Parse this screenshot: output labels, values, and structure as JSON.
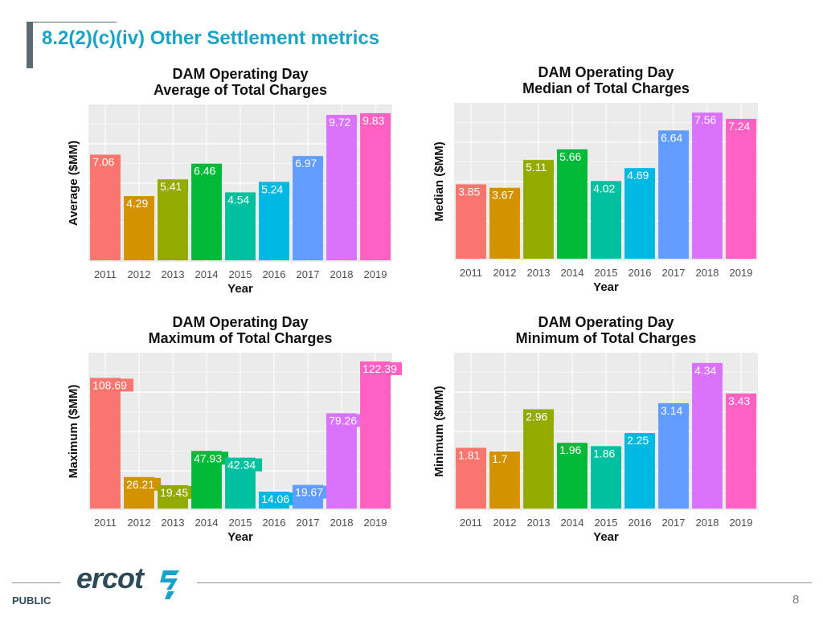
{
  "slide": {
    "title": "8.2(2)(c)(iv) Other Settlement metrics"
  },
  "footer": {
    "classification": "PUBLIC",
    "page_number": "8",
    "logo_text": "ercot"
  },
  "palette": [
    "#F8766D",
    "#D39200",
    "#93AA00",
    "#00BA38",
    "#00C19F",
    "#00B9E3",
    "#619CFF",
    "#DB72FB",
    "#FF61C3"
  ],
  "chart_data": [
    {
      "type": "bar",
      "title": [
        "DAM Operating Day",
        "Average of Total Charges"
      ],
      "xlabel": "Year",
      "ylabel": "Average ($MM)",
      "categories": [
        "2011",
        "2012",
        "2013",
        "2014",
        "2015",
        "2016",
        "2017",
        "2018",
        "2019"
      ],
      "values": [
        7.06,
        4.29,
        5.41,
        6.46,
        4.54,
        5.24,
        6.97,
        9.72,
        9.83
      ],
      "labels": [
        "7.06",
        "4.29",
        "5.41",
        "6.46",
        "4.54",
        "5.24",
        "6.97",
        "9.72",
        "9.83"
      ],
      "ylim": [
        0,
        10.2
      ],
      "grid": true
    },
    {
      "type": "bar",
      "title": [
        "DAM Operating Day",
        "Median of Total Charges"
      ],
      "xlabel": "Year",
      "ylabel": "Median ($MM)",
      "categories": [
        "2011",
        "2012",
        "2013",
        "2014",
        "2015",
        "2016",
        "2017",
        "2018",
        "2019"
      ],
      "values": [
        3.85,
        3.67,
        5.11,
        5.66,
        4.02,
        4.69,
        6.64,
        7.56,
        7.24
      ],
      "labels": [
        "3.85",
        "3.67",
        "5.11",
        "5.66",
        "4.02",
        "4.69",
        "6.64",
        "7.56",
        "7.24"
      ],
      "ylim": [
        0,
        7.9
      ],
      "grid": true
    },
    {
      "type": "bar",
      "title": [
        "DAM Operating Day",
        "Maximum of Total Charges"
      ],
      "xlabel": "Year",
      "ylabel": "Maximum ($MM)",
      "categories": [
        "2011",
        "2012",
        "2013",
        "2014",
        "2015",
        "2016",
        "2017",
        "2018",
        "2019"
      ],
      "values": [
        108.69,
        26.21,
        19.45,
        47.93,
        42.34,
        14.06,
        19.67,
        79.26,
        122.39
      ],
      "labels": [
        "108.69",
        "26.21",
        "19.45",
        "47.93",
        "42.34",
        "14.06",
        "19.67",
        "79.26",
        "122.39"
      ],
      "ylim": [
        0,
        127
      ],
      "grid": true
    },
    {
      "type": "bar",
      "title": [
        "DAM Operating Day",
        "Minimum of Total Charges"
      ],
      "xlabel": "Year",
      "ylabel": "Minimum ($MM)",
      "categories": [
        "2011",
        "2012",
        "2013",
        "2014",
        "2015",
        "2016",
        "2017",
        "2018",
        "2019"
      ],
      "values": [
        1.81,
        1.7,
        2.96,
        1.96,
        1.86,
        2.25,
        3.14,
        4.34,
        3.43
      ],
      "labels": [
        "1.81",
        "1.7",
        "2.96",
        "1.96",
        "1.86",
        "2.25",
        "3.14",
        "4.34",
        "3.43"
      ],
      "ylim": [
        0,
        4.55
      ],
      "grid": true
    }
  ]
}
